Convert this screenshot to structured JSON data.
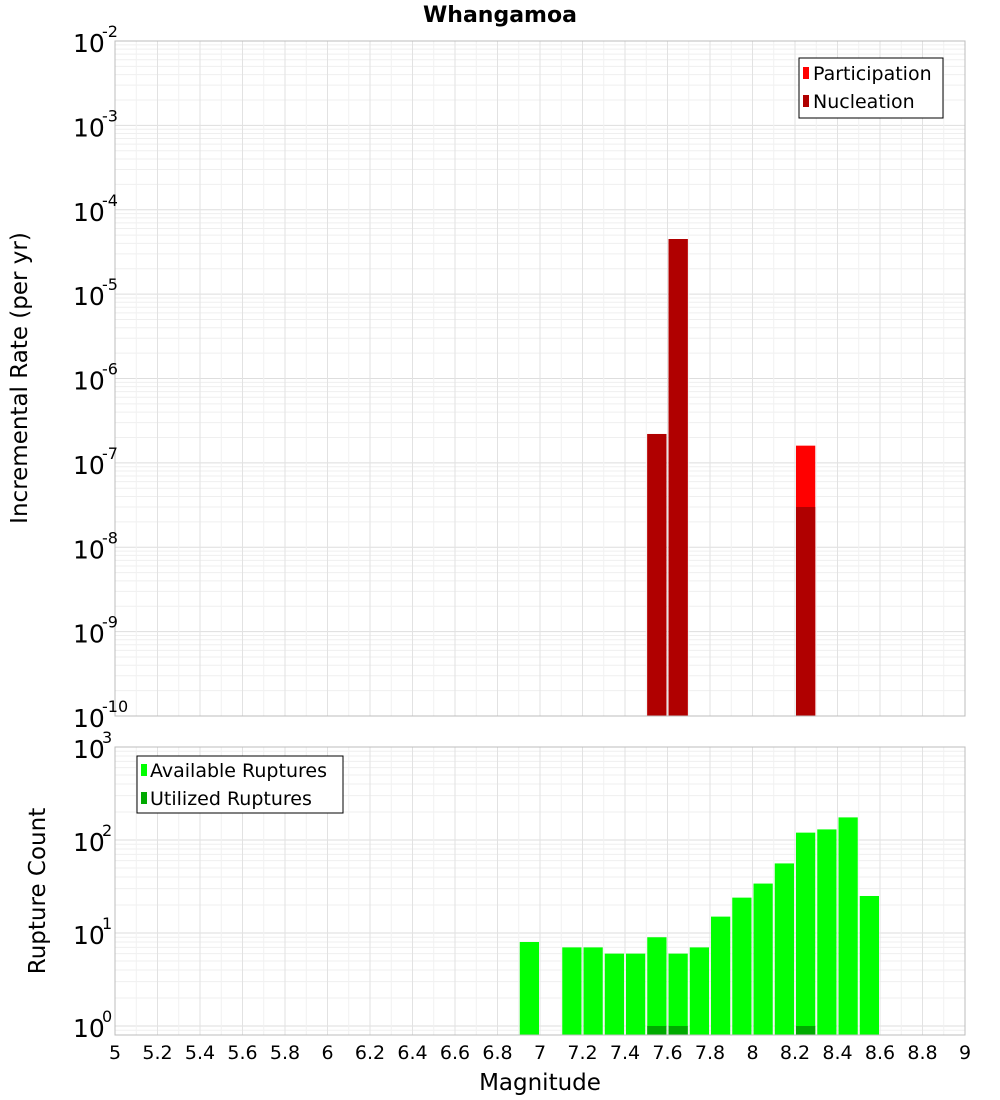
{
  "chart_data": [
    {
      "type": "bar",
      "title": "Whangamoa",
      "xlabel": "",
      "ylabel": "Incremental Rate (per yr)",
      "xlim": [
        5,
        9
      ],
      "ylim": [
        1e-10,
        0.01
      ],
      "y_scale": "log",
      "y_ticks": [
        {
          "base": "10",
          "exp": "-10",
          "value": 1e-10
        },
        {
          "base": "10",
          "exp": "-9",
          "value": 1e-09
        },
        {
          "base": "10",
          "exp": "-8",
          "value": 1e-08
        },
        {
          "base": "10",
          "exp": "-7",
          "value": 1e-07
        },
        {
          "base": "10",
          "exp": "-6",
          "value": 1e-06
        },
        {
          "base": "10",
          "exp": "-5",
          "value": 1e-05
        },
        {
          "base": "10",
          "exp": "-4",
          "value": 0.0001
        },
        {
          "base": "10",
          "exp": "-3",
          "value": 0.001
        },
        {
          "base": "10",
          "exp": "-2",
          "value": 0.01
        }
      ],
      "grid": true,
      "legend_position": "top-right",
      "bin_width": 0.1,
      "series": [
        {
          "name": "Participation",
          "color": "#ff0000",
          "x": [
            7.55,
            7.65,
            8.25
          ],
          "values": [
            2.2e-07,
            4.5e-05,
            1.6e-07
          ]
        },
        {
          "name": "Nucleation",
          "color": "#b00000",
          "x": [
            7.55,
            7.65,
            8.25
          ],
          "values": [
            2.2e-07,
            4.5e-05,
            3e-08
          ]
        }
      ]
    },
    {
      "type": "bar",
      "title": "",
      "xlabel": "Magnitude",
      "ylabel": "Rupture Count",
      "xlim": [
        5,
        9
      ],
      "ylim": [
        0.8,
        1000
      ],
      "y_scale": "log",
      "y_ticks": [
        {
          "base": "10",
          "exp": "0",
          "value": 1
        },
        {
          "base": "10",
          "exp": "1",
          "value": 10
        },
        {
          "base": "10",
          "exp": "2",
          "value": 100
        },
        {
          "base": "10",
          "exp": "3",
          "value": 1000
        }
      ],
      "x_ticks": [
        "5",
        "5.2",
        "5.4",
        "5.6",
        "5.8",
        "6",
        "6.2",
        "6.4",
        "6.6",
        "6.8",
        "7",
        "7.2",
        "7.4",
        "7.6",
        "7.8",
        "8",
        "8.2",
        "8.4",
        "8.6",
        "8.8",
        "9"
      ],
      "grid": true,
      "legend_position": "top-left",
      "bin_width": 0.1,
      "series": [
        {
          "name": "Available Ruptures",
          "color": "#00ff00",
          "x": [
            6.95,
            7.15,
            7.25,
            7.35,
            7.45,
            7.55,
            7.65,
            7.75,
            7.85,
            7.95,
            8.05,
            8.15,
            8.25,
            8.35,
            8.45,
            8.55
          ],
          "values": [
            8,
            7,
            7,
            6,
            6,
            9,
            6,
            7,
            15,
            24,
            34,
            56,
            120,
            130,
            175,
            25
          ]
        },
        {
          "name": "Utilized Ruptures",
          "color": "#00aa00",
          "x": [
            7.55,
            7.65,
            8.25
          ],
          "values": [
            1,
            1,
            1
          ]
        }
      ]
    }
  ]
}
